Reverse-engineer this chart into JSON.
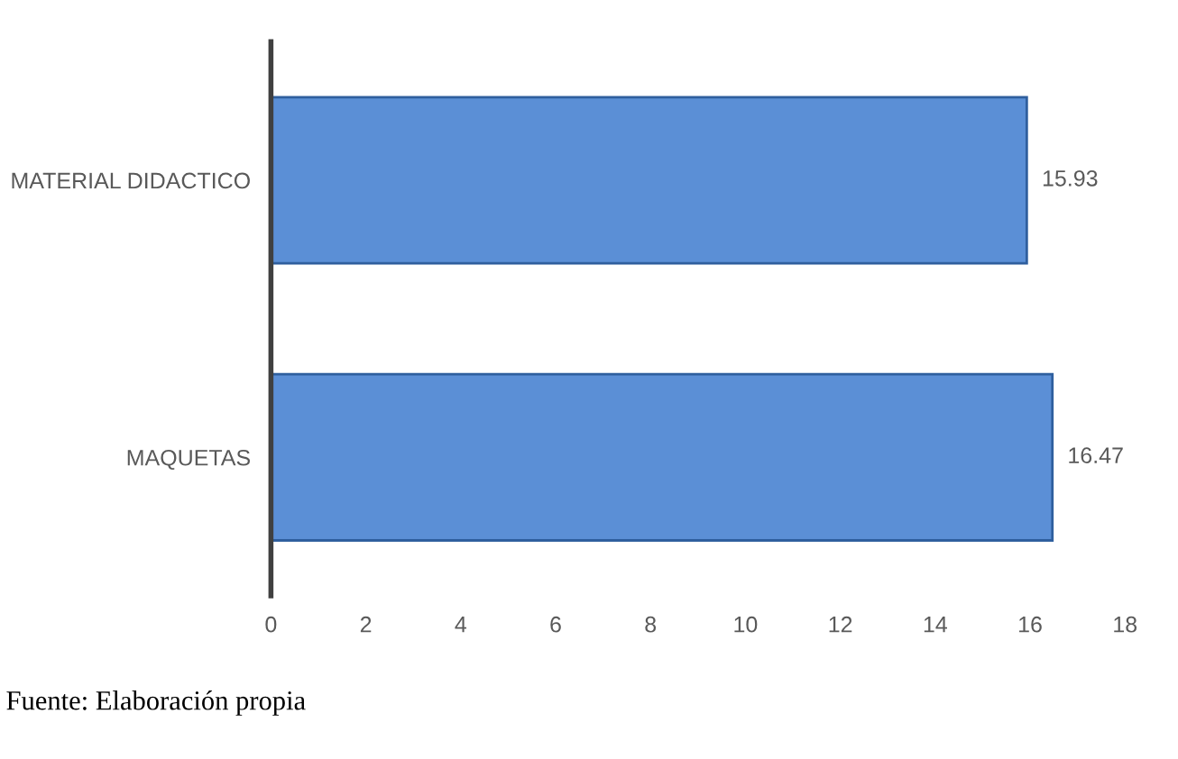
{
  "chart_data": {
    "type": "bar",
    "orientation": "horizontal",
    "categories": [
      "MATERIAL DIDACTICO",
      "MAQUETAS"
    ],
    "values": [
      15.93,
      16.47
    ],
    "color": "#5b8fd6",
    "xlim": [
      0,
      18
    ],
    "xticks": [
      0,
      2,
      4,
      6,
      8,
      10,
      12,
      14,
      16,
      18
    ],
    "data_labels": true,
    "grid": false,
    "legend": false,
    "annotations": [
      "Fuente: Elaboración propia"
    ]
  }
}
